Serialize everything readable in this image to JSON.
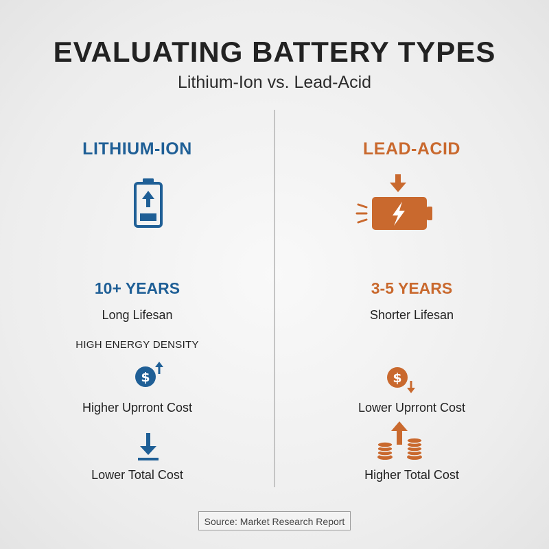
{
  "header": {
    "title": "EVALUATING BATTERY TYPES",
    "subtitle": "Lithium-Ion vs. Lead-Acid"
  },
  "colors": {
    "lithium": "#1f5f96",
    "lead": "#c9692e"
  },
  "lithium": {
    "heading": "LITHIUM-ION",
    "icon": "battery-charging-up-icon",
    "lifespan_value": "10+ YEARS",
    "lifespan_label": "Long Lifesan",
    "density_label": "HIGH ENERGY DENSITY",
    "cost_icon": "dollar-up-icon",
    "upfront_label": "Higher Uprront Cost",
    "total_icon": "arrow-down-icon",
    "total_label": "Lower Total Cost"
  },
  "lead": {
    "heading": "LEAD-ACID",
    "icon": "battery-lightning-icon",
    "lifespan_value": "3-5 YEARS",
    "lifespan_label": "Shorter Lifesan",
    "cost_icon": "dollar-down-icon",
    "upfront_label": "Lower Uprront Cost",
    "total_icon": "coins-arrow-up-icon",
    "total_label": "Higher Total Cost"
  },
  "footer": {
    "source": "Source: Market Research Report"
  }
}
